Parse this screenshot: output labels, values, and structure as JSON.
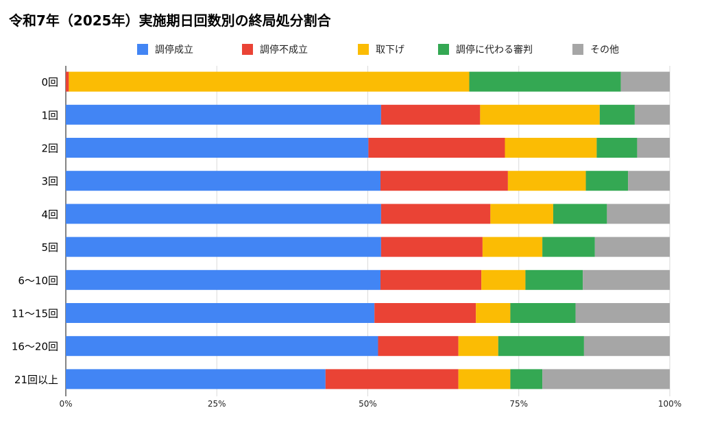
{
  "chart_data": {
    "type": "bar",
    "orientation": "horizontal",
    "stacked": "percent",
    "title": "令和7年（2025年）実施期日回数別の終局処分割合",
    "legend_placement": "top",
    "xlim": [
      0,
      100
    ],
    "x_ticks": [
      "0%",
      "25%",
      "50%",
      "75%",
      "100%"
    ],
    "grid": true,
    "categories": [
      "0回",
      "1回",
      "2回",
      "3回",
      "4回",
      "5回",
      "6〜10回",
      "11〜15回",
      "16〜20回",
      "21回以上"
    ],
    "series": [
      {
        "name": "調停成立",
        "color": "#4285F4",
        "values": [
          0,
          52.2,
          50.1,
          52.1,
          52.2,
          52.2,
          52.1,
          51.1,
          51.7,
          43.0
        ]
      },
      {
        "name": "調停不成立",
        "color": "#EA4335",
        "values": [
          0.5,
          16.4,
          22.6,
          21.1,
          18.1,
          16.8,
          16.7,
          16.8,
          13.3,
          22.0
        ]
      },
      {
        "name": "取下げ",
        "color": "#FBBC04",
        "values": [
          66.3,
          19.8,
          15.2,
          12.9,
          10.4,
          9.9,
          7.3,
          5.7,
          6.6,
          8.6
        ]
      },
      {
        "name": "調停に代わる審判",
        "color": "#34A853",
        "values": [
          25.1,
          5.8,
          6.7,
          7.0,
          8.9,
          8.7,
          9.5,
          10.8,
          14.2,
          5.3
        ]
      },
      {
        "name": "その他",
        "color": "#A6A6A6",
        "values": [
          8.1,
          5.8,
          5.4,
          6.9,
          10.4,
          12.4,
          14.4,
          15.6,
          14.2,
          21.1
        ]
      }
    ]
  }
}
